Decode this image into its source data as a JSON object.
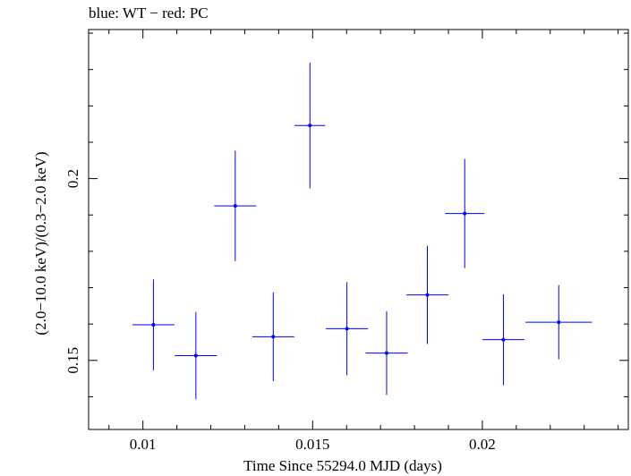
{
  "title": "blue: WT − red: PC",
  "chart_data": {
    "type": "scatter",
    "title": "blue: WT − red: PC",
    "xlabel": "Time Since 55294.0 MJD (days)",
    "ylabel": "(2.0−10.0 keV)/(0.3−2.0 keV)",
    "xlim": [
      0.0084,
      0.0243
    ],
    "ylim": [
      0.131,
      0.241
    ],
    "x_ticks": [
      0.01,
      0.015,
      0.02
    ],
    "x_tick_labels": [
      "0.01",
      "0.015",
      "0.02"
    ],
    "y_ticks": [
      0.15,
      0.2
    ],
    "y_tick_labels": [
      "0.15",
      "0.2"
    ],
    "grid": false,
    "series": [
      {
        "color": "#0000ff",
        "points": [
          {
            "x": 0.01031,
            "xerr": 0.00062,
            "y": 0.1598,
            "yerr": 0.0125
          },
          {
            "x": 0.01156,
            "xerr": 0.00062,
            "y": 0.1513,
            "yerr": 0.012
          },
          {
            "x": 0.01272,
            "xerr": 0.00062,
            "y": 0.1925,
            "yerr": 0.0152
          },
          {
            "x": 0.01384,
            "xerr": 0.00062,
            "y": 0.1565,
            "yerr": 0.0122
          },
          {
            "x": 0.01492,
            "xerr": 0.00045,
            "y": 0.2146,
            "yerr": 0.0173
          },
          {
            "x": 0.01601,
            "xerr": 0.00062,
            "y": 0.1587,
            "yerr": 0.0128
          },
          {
            "x": 0.01718,
            "xerr": 0.00062,
            "y": 0.152,
            "yerr": 0.0115
          },
          {
            "x": 0.01838,
            "xerr": 0.00062,
            "y": 0.168,
            "yerr": 0.0135
          },
          {
            "x": 0.01948,
            "xerr": 0.00058,
            "y": 0.1904,
            "yerr": 0.015
          },
          {
            "x": 0.02062,
            "xerr": 0.00062,
            "y": 0.1557,
            "yerr": 0.0125
          },
          {
            "x": 0.02225,
            "xerr": 0.00098,
            "y": 0.1605,
            "yerr": 0.0102
          }
        ]
      }
    ]
  }
}
